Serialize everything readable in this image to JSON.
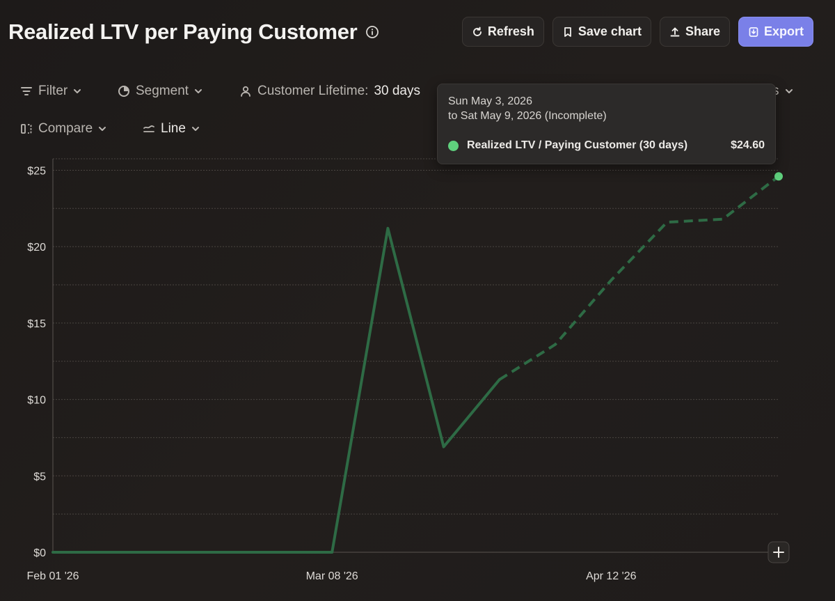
{
  "header": {
    "title": "Realized LTV per Paying Customer",
    "actions": [
      {
        "label": "Refresh",
        "icon": "refresh-icon"
      },
      {
        "label": "Save chart",
        "icon": "bookmark-icon"
      },
      {
        "label": "Share",
        "icon": "upload-icon"
      },
      {
        "label": "Export",
        "icon": "download-icon"
      }
    ]
  },
  "toolbar": {
    "filter": {
      "label": "Filter"
    },
    "segment": {
      "label": "Segment"
    },
    "lifetime": {
      "label": "Customer Lifetime:",
      "value": "30 days"
    },
    "hidden_control_tail": "s",
    "compare": {
      "label": "Compare"
    },
    "chart_type": {
      "label": "Line"
    }
  },
  "tooltip": {
    "date_line1": "Sun May 3, 2026",
    "date_line2": "to Sat May 9, 2026 (Incomplete)",
    "series_name": "Realized LTV / Paying Customer (30 days)",
    "value": "$24.60"
  },
  "colors": {
    "series": "#2e6b45",
    "highlight_point": "#5fd07d",
    "accent_button": "#7a80e8"
  },
  "chart_data": {
    "type": "line",
    "y_tick_labels": [
      "$0",
      "$5",
      "$10",
      "$15",
      "$20",
      "$25"
    ],
    "y_ticks": [
      0,
      5,
      10,
      15,
      20,
      25
    ],
    "ylim": [
      0,
      25.75
    ],
    "x_tick_labels": [
      "Feb 01 '26",
      "Mar 08 '26",
      "Apr 12 '26"
    ],
    "x_tick_dates": [
      "2026-02-01",
      "2026-03-08",
      "2026-04-12"
    ],
    "xlim": [
      "2026-02-01",
      "2026-05-03"
    ],
    "grid": true,
    "series": [
      {
        "complete": [
          {
            "x": "2026-02-01",
            "y": 0
          },
          {
            "x": "2026-02-08",
            "y": 0
          },
          {
            "x": "2026-02-15",
            "y": 0
          },
          {
            "x": "2026-02-22",
            "y": 0
          },
          {
            "x": "2026-03-01",
            "y": 0
          },
          {
            "x": "2026-03-08",
            "y": 0
          },
          {
            "x": "2026-03-15",
            "y": 21.2
          },
          {
            "x": "2026-03-22",
            "y": 6.9
          },
          {
            "x": "2026-03-29",
            "y": 11.3
          }
        ],
        "incomplete": [
          {
            "x": "2026-03-29",
            "y": 11.3
          },
          {
            "x": "2026-04-05",
            "y": 13.6
          },
          {
            "x": "2026-04-12",
            "y": 17.8
          },
          {
            "x": "2026-04-19",
            "y": 21.6
          },
          {
            "x": "2026-04-26",
            "y": 21.8
          },
          {
            "x": "2026-05-03",
            "y": 24.6
          }
        ]
      }
    ],
    "highlight": {
      "x": "2026-05-03",
      "y": 24.6
    }
  }
}
